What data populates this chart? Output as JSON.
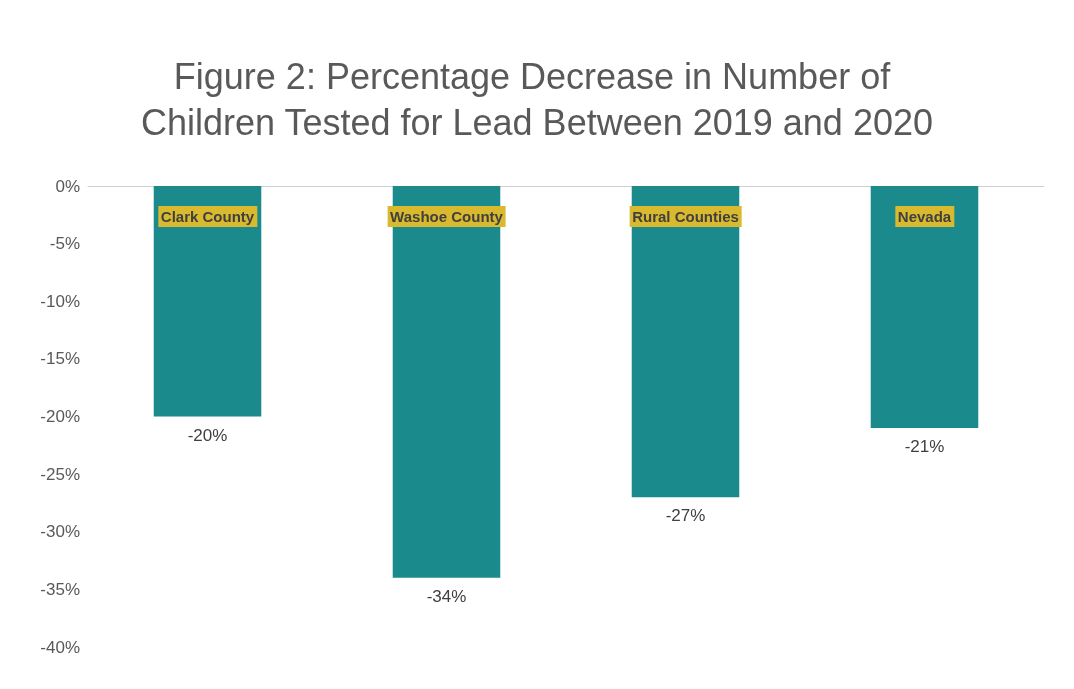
{
  "chart_data": {
    "type": "bar",
    "title": "Figure 2: Percentage Decrease in Number of Children Tested for Lead Between 2019 and 2020",
    "categories": [
      "Clark County",
      "Washoe County",
      "Rural Counties",
      "Nevada"
    ],
    "values": [
      -20,
      -34,
      -27,
      -21
    ],
    "value_labels": [
      "-20%",
      "-34%",
      "-27%",
      "-21%"
    ],
    "color": "#1a8a8c",
    "ylim": [
      -40,
      0
    ],
    "yticks": [
      {
        "value": 0,
        "label": "0%"
      },
      {
        "value": -5,
        "label": "-5%"
      },
      {
        "value": -10,
        "label": "-10%"
      },
      {
        "value": -15,
        "label": "-15%"
      },
      {
        "value": -20,
        "label": "-20%"
      },
      {
        "value": -25,
        "label": "-25%"
      },
      {
        "value": -30,
        "label": "-30%"
      },
      {
        "value": -35,
        "label": "-35%"
      },
      {
        "value": -40,
        "label": "-40%"
      }
    ],
    "grid": false
  }
}
